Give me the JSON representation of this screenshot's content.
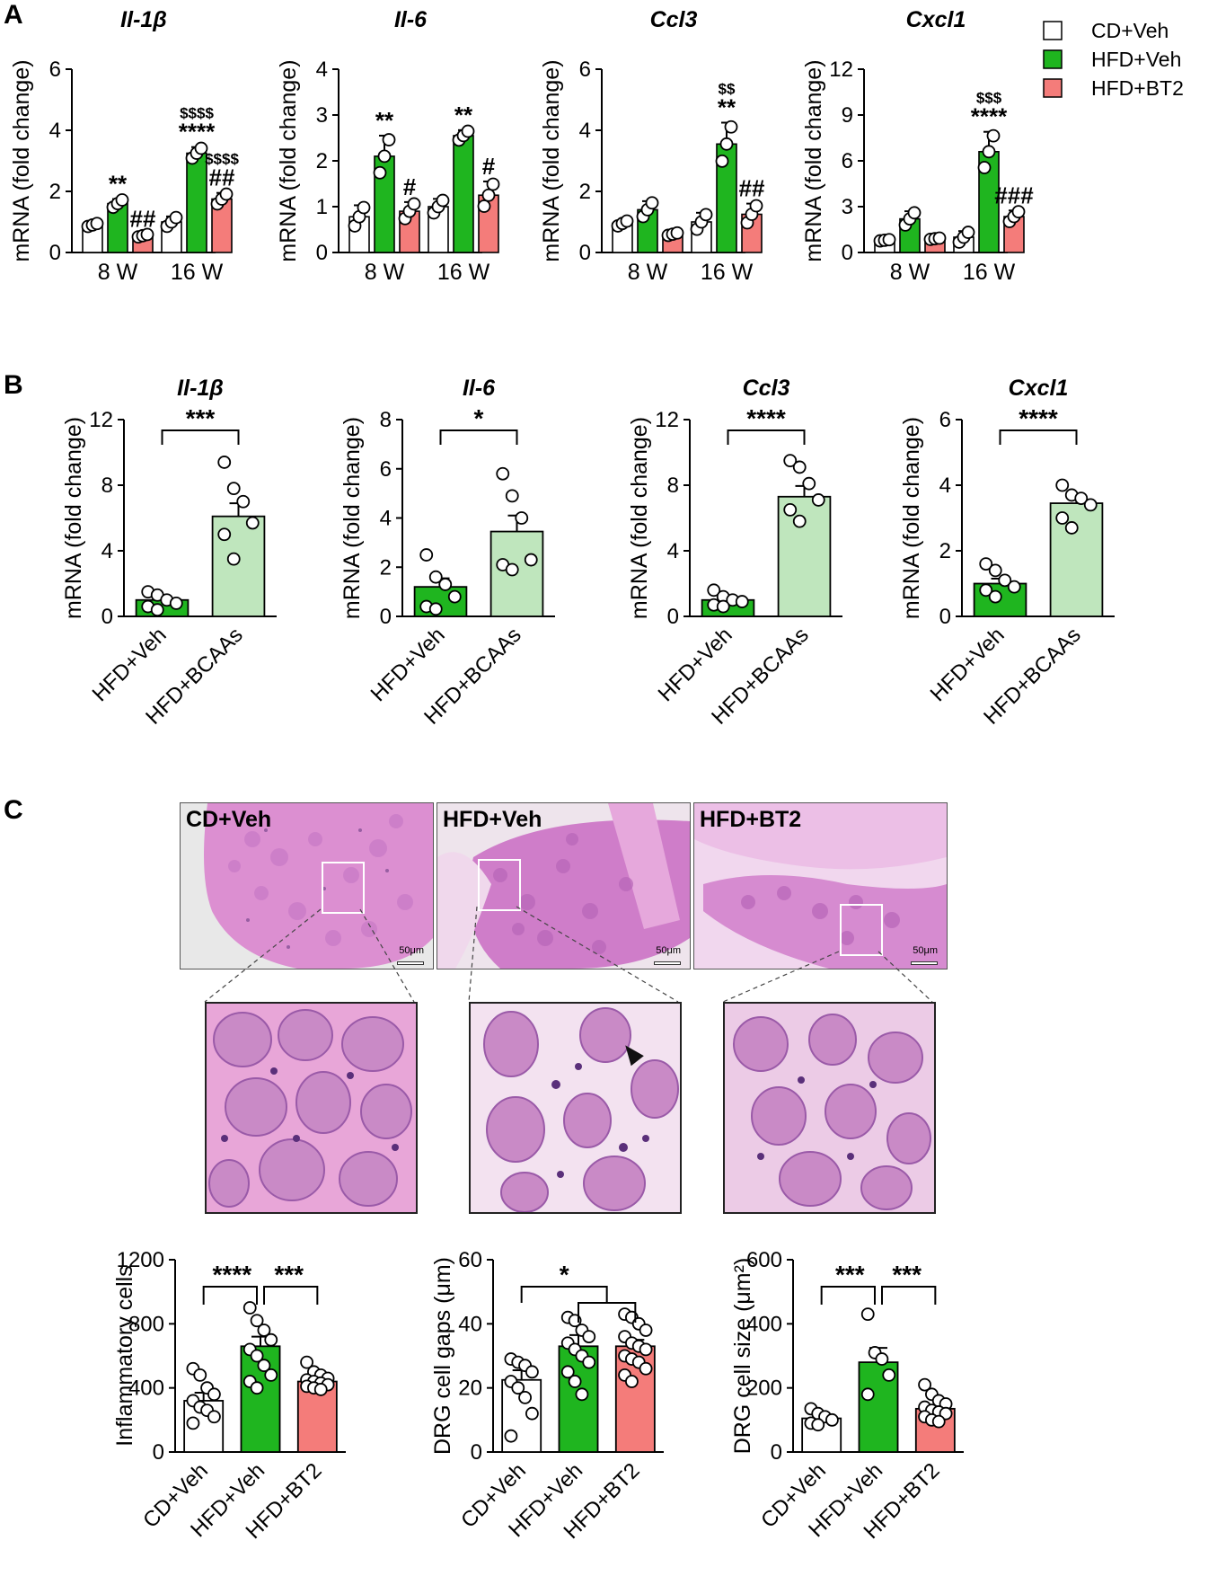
{
  "panels": {
    "a": "A",
    "b": "B",
    "c": "C"
  },
  "colors": {
    "cd": "#ffffff",
    "hfd": "#1fb51f",
    "bt2": "#f47c7a",
    "bcaa": "#bfe6bd",
    "he_pink": "#e59ad0",
    "he_purple": "#8a4a9c"
  },
  "legend": [
    {
      "label": "CD+Veh",
      "color": "#ffffff"
    },
    {
      "label": "HFD+Veh",
      "color": "#1fb51f"
    },
    {
      "label": "HFD+BT2",
      "color": "#f47c7a"
    }
  ],
  "micrographs": {
    "labels": [
      "CD+Veh",
      "HFD+Veh",
      "HFD+BT2"
    ],
    "scale_label": "50μm"
  },
  "chart_data": [
    {
      "id": "A1",
      "type": "bar",
      "title": "Il-1β",
      "ylabel": "mRNA (fold change)",
      "categories": [
        "8 W",
        "16 W"
      ],
      "ylim": [
        0,
        6
      ],
      "yticks": [
        0,
        2,
        4,
        6
      ],
      "series": [
        {
          "name": "CD+Veh",
          "values": [
            0.9,
            1.0
          ],
          "sem": [
            0.06,
            0.18
          ]
        },
        {
          "name": "HFD+Veh",
          "values": [
            1.6,
            3.25
          ],
          "sem": [
            0.15,
            0.2
          ]
        },
        {
          "name": "HFD+BT2",
          "values": [
            0.55,
            1.75
          ],
          "sem": [
            0.05,
            0.2
          ]
        }
      ],
      "annotations": [
        {
          "bar": [
            0,
            1
          ],
          "lines": [
            "**"
          ]
        },
        {
          "bar": [
            0,
            2
          ],
          "lines": [
            "##"
          ]
        },
        {
          "bar": [
            1,
            1
          ],
          "lines": [
            "$$$$",
            "****"
          ]
        },
        {
          "bar": [
            1,
            2
          ],
          "lines": [
            "$$$$",
            "##"
          ]
        }
      ]
    },
    {
      "id": "A2",
      "type": "bar",
      "title": "Il-6",
      "ylabel": "mRNA (fold change)",
      "categories": [
        "8 W",
        "16 W"
      ],
      "ylim": [
        0,
        4
      ],
      "yticks": [
        0,
        1,
        2,
        3,
        4
      ],
      "series": [
        {
          "name": "CD+Veh",
          "values": [
            0.78,
            1.0
          ],
          "sem": [
            0.25,
            0.17
          ]
        },
        {
          "name": "HFD+Veh",
          "values": [
            2.1,
            2.55
          ],
          "sem": [
            0.45,
            0.12
          ]
        },
        {
          "name": "HFD+BT2",
          "values": [
            0.9,
            1.25
          ],
          "sem": [
            0.2,
            0.3
          ]
        }
      ],
      "annotations": [
        {
          "bar": [
            0,
            1
          ],
          "lines": [
            "**"
          ]
        },
        {
          "bar": [
            0,
            2
          ],
          "lines": [
            "#"
          ]
        },
        {
          "bar": [
            1,
            1
          ],
          "lines": [
            "**"
          ]
        },
        {
          "bar": [
            1,
            2
          ],
          "lines": [
            "#"
          ]
        }
      ]
    },
    {
      "id": "A3",
      "type": "bar",
      "title": "Ccl3",
      "ylabel": "mRNA (fold change)",
      "categories": [
        "8 W",
        "16 W"
      ],
      "ylim": [
        0,
        6
      ],
      "yticks": [
        0,
        2,
        4,
        6
      ],
      "series": [
        {
          "name": "CD+Veh",
          "values": [
            0.95,
            1.0
          ],
          "sem": [
            0.1,
            0.3
          ]
        },
        {
          "name": "HFD+Veh",
          "values": [
            1.4,
            3.55
          ],
          "sem": [
            0.28,
            0.7
          ]
        },
        {
          "name": "HFD+BT2",
          "values": [
            0.6,
            1.25
          ],
          "sem": [
            0.05,
            0.35
          ]
        }
      ],
      "annotations": [
        {
          "bar": [
            1,
            1
          ],
          "lines": [
            "$$",
            "**"
          ]
        },
        {
          "bar": [
            1,
            2
          ],
          "lines": [
            "##"
          ]
        }
      ]
    },
    {
      "id": "A4",
      "type": "bar",
      "title": "Cxcl1",
      "ylabel": "mRNA (fold change)",
      "categories": [
        "8 W",
        "16 W"
      ],
      "ylim": [
        0,
        12
      ],
      "yticks": [
        0,
        3,
        6,
        9,
        12
      ],
      "series": [
        {
          "name": "CD+Veh",
          "values": [
            0.8,
            1.0
          ],
          "sem": [
            0.05,
            0.4
          ]
        },
        {
          "name": "HFD+Veh",
          "values": [
            2.2,
            6.6
          ],
          "sem": [
            0.5,
            1.3
          ]
        },
        {
          "name": "HFD+BT2",
          "values": [
            0.9,
            2.35
          ],
          "sem": [
            0.05,
            0.4
          ]
        }
      ],
      "annotations": [
        {
          "bar": [
            1,
            1
          ],
          "lines": [
            "$$$",
            "****"
          ]
        },
        {
          "bar": [
            1,
            2
          ],
          "lines": [
            "###"
          ]
        }
      ]
    },
    {
      "id": "B1",
      "type": "bar",
      "title": "Il-1β",
      "ylabel": "mRNA (fold change)",
      "categories": [
        "HFD+Veh",
        "HFD+BCAAs"
      ],
      "ylim": [
        0,
        12
      ],
      "yticks": [
        0,
        4,
        8,
        12
      ],
      "values": [
        1.0,
        6.1
      ],
      "sem": [
        0.2,
        0.8
      ],
      "points": [
        [
          1.5,
          1.3,
          1.0,
          0.8,
          0.6,
          0.4
        ],
        [
          9.4,
          7.8,
          7.0,
          5.7,
          5.0,
          3.5
        ]
      ],
      "significance": "***"
    },
    {
      "id": "B2",
      "type": "bar",
      "title": "Il-6",
      "ylabel": "mRNA (fold change)",
      "categories": [
        "HFD+Veh",
        "HFD+BCAAs"
      ],
      "ylim": [
        0,
        8
      ],
      "yticks": [
        0,
        2,
        4,
        6,
        8
      ],
      "values": [
        1.2,
        3.45
      ],
      "sem": [
        0.35,
        0.65
      ],
      "points": [
        [
          2.5,
          1.6,
          1.3,
          0.8,
          0.4,
          0.3
        ],
        [
          5.8,
          4.9,
          4.0,
          2.3,
          2.1,
          1.9
        ]
      ],
      "significance": "*"
    },
    {
      "id": "B3",
      "type": "bar",
      "title": "Ccl3",
      "ylabel": "mRNA (fold change)",
      "categories": [
        "HFD+Veh",
        "HFD+BCAAs"
      ],
      "ylim": [
        0,
        12
      ],
      "yticks": [
        0,
        4,
        8,
        12
      ],
      "values": [
        1.0,
        7.3
      ],
      "sem": [
        0.15,
        0.65
      ],
      "points": [
        [
          1.6,
          1.2,
          1.0,
          0.9,
          0.7,
          0.6
        ],
        [
          9.5,
          9.1,
          8.1,
          7.1,
          6.5,
          5.8
        ]
      ],
      "significance": "****"
    },
    {
      "id": "B4",
      "type": "bar",
      "title": "Cxcl1",
      "ylabel": "mRNA (fold change)",
      "categories": [
        "HFD+Veh",
        "HFD+BCAAs"
      ],
      "ylim": [
        0,
        6
      ],
      "yticks": [
        0,
        2,
        4,
        6
      ],
      "values": [
        1.0,
        3.45
      ],
      "sem": [
        0.15,
        0.25
      ],
      "points": [
        [
          1.6,
          1.4,
          1.1,
          0.9,
          0.8,
          0.6
        ],
        [
          4.0,
          3.7,
          3.6,
          3.4,
          3.0,
          2.7
        ]
      ],
      "significance": "****"
    },
    {
      "id": "C1",
      "type": "bar",
      "title": "",
      "ylabel": "Inflammatory cells",
      "categories": [
        "CD+Veh",
        "HFD+Veh",
        "HFD+BT2"
      ],
      "ylim": [
        0,
        1200
      ],
      "yticks": [
        0,
        400,
        800,
        1200
      ],
      "values": [
        320,
        660,
        440
      ],
      "sem": [
        50,
        60,
        20
      ],
      "points": [
        [
          520,
          480,
          400,
          360,
          320,
          280,
          260,
          220,
          180
        ],
        [
          900,
          820,
          760,
          700,
          640,
          600,
          540,
          480,
          440,
          400
        ],
        [
          560,
          500,
          480,
          460,
          450,
          440,
          430,
          420,
          410,
          400,
          390
        ]
      ],
      "comparisons": [
        {
          "from": 0,
          "to": 1,
          "label": "****"
        },
        {
          "from": 1,
          "to": 2,
          "label": "***"
        }
      ]
    },
    {
      "id": "C2",
      "type": "bar",
      "title": "",
      "ylabel": "DRG cell gaps (μm)",
      "categories": [
        "CD+Veh",
        "HFD+Veh",
        "HFD+BT2"
      ],
      "ylim": [
        0,
        60
      ],
      "yticks": [
        0,
        20,
        40,
        60
      ],
      "values": [
        22.5,
        33,
        33
      ],
      "sem": [
        3,
        3.5,
        2
      ],
      "points": [
        [
          29,
          28,
          27,
          25,
          22,
          20,
          17,
          12,
          5
        ],
        [
          42,
          41,
          38,
          36,
          34,
          32,
          30,
          28,
          25,
          22,
          18
        ],
        [
          43,
          42,
          40,
          38,
          36,
          34,
          33,
          32,
          30,
          29,
          28,
          26,
          24,
          22
        ]
      ],
      "comparisons": [
        {
          "from": 0,
          "to": 1.5,
          "label": "*"
        }
      ]
    },
    {
      "id": "C3",
      "type": "bar",
      "title": "",
      "ylabel": "DRG cell size (μm²)",
      "categories": [
        "CD+Veh",
        "HFD+Veh",
        "HFD+BT2"
      ],
      "ylim": [
        0,
        600
      ],
      "yticks": [
        0,
        200,
        400,
        600
      ],
      "values": [
        105,
        280,
        135
      ],
      "sem": [
        12,
        45,
        12
      ],
      "points": [
        [
          135,
          120,
          110,
          100,
          90,
          85
        ],
        [
          430,
          310,
          290,
          240,
          180
        ],
        [
          210,
          180,
          160,
          150,
          140,
          130,
          125,
          120,
          110,
          100,
          95
        ]
      ],
      "comparisons": [
        {
          "from": 0,
          "to": 1,
          "label": "***"
        },
        {
          "from": 1,
          "to": 2,
          "label": "***"
        }
      ]
    }
  ]
}
